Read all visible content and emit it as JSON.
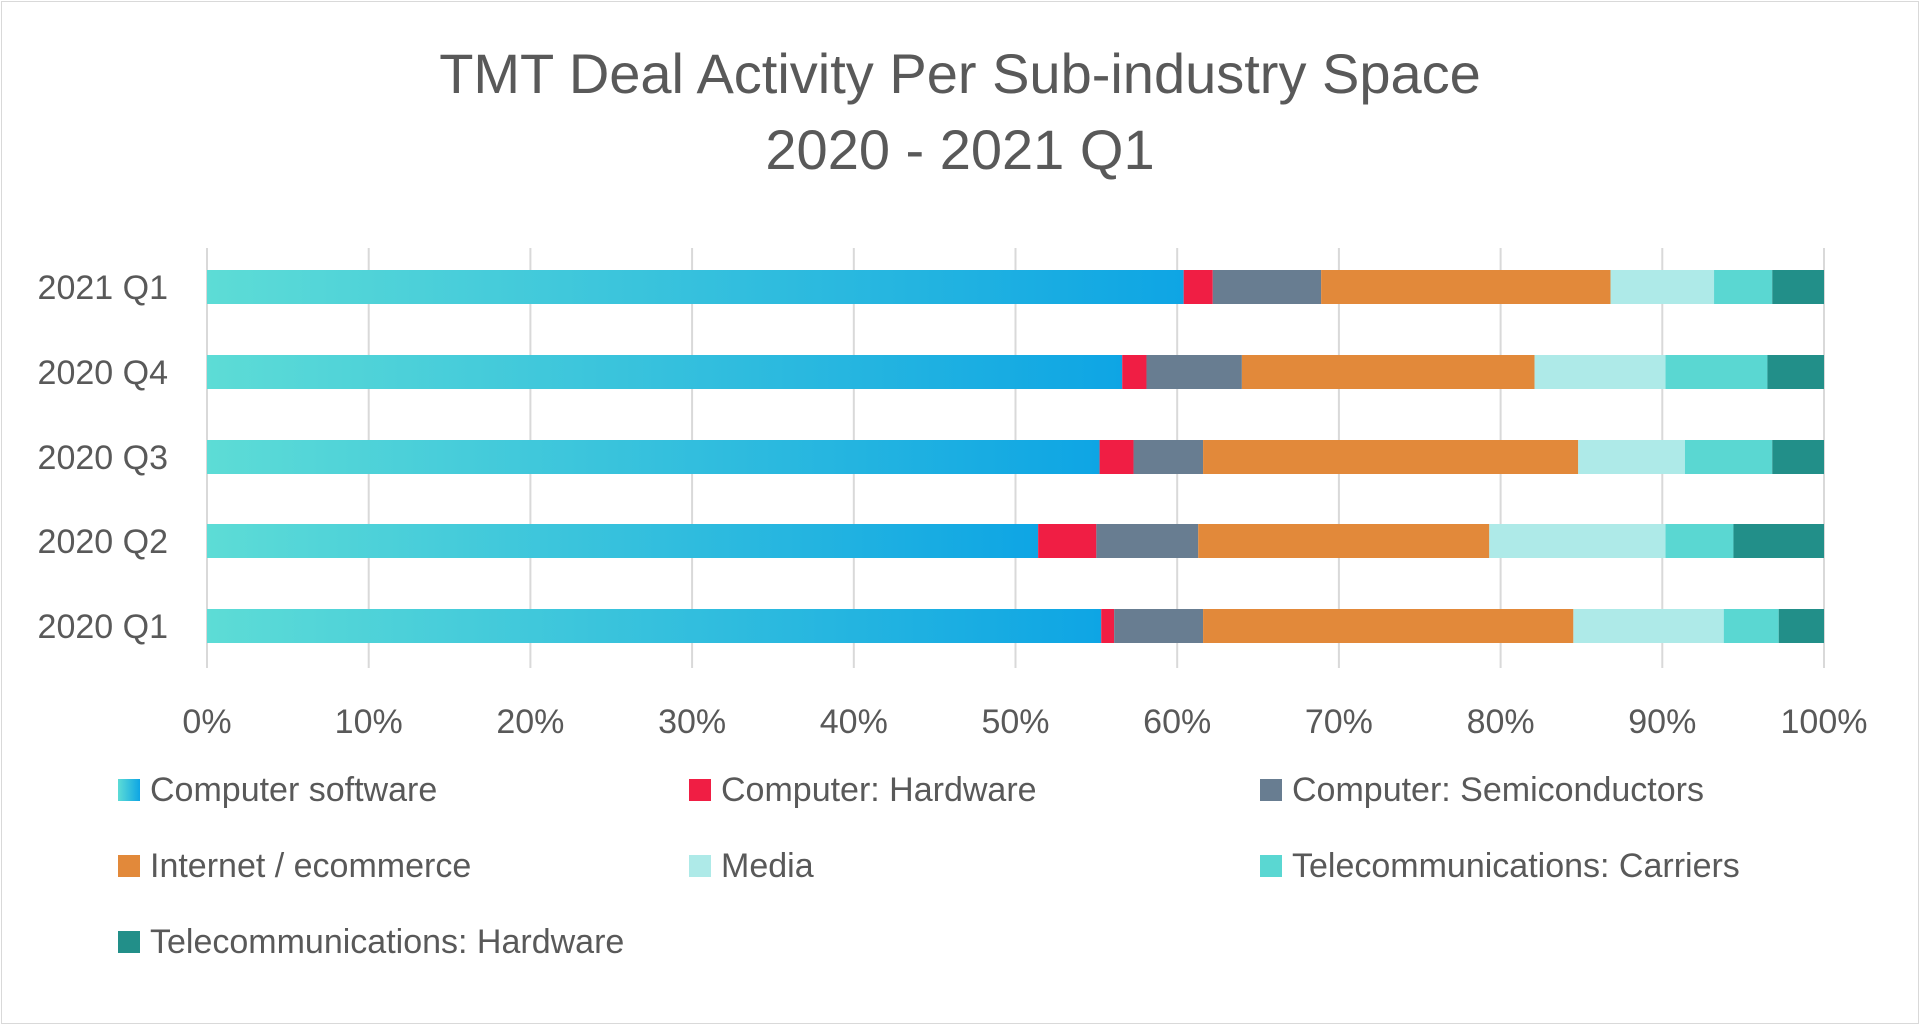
{
  "chart_data": {
    "type": "bar",
    "orientation": "horizontal",
    "stacked": "percent",
    "title": "TMT Deal Activity Per Sub-industry Space",
    "subtitle": "2020 - 2021 Q1",
    "categories": [
      "2021 Q1",
      "2020 Q4",
      "2020 Q3",
      "2020 Q2",
      "2020 Q1"
    ],
    "xlim": [
      0,
      100
    ],
    "x_ticks": [
      "0%",
      "10%",
      "20%",
      "30%",
      "40%",
      "50%",
      "60%",
      "70%",
      "80%",
      "90%",
      "100%"
    ],
    "grid": "vertical",
    "legend_position": "bottom",
    "series": [
      {
        "name": "Computer software",
        "color": "#0ea5e4",
        "color_start": "#5ddcd6",
        "values": [
          60.4,
          56.6,
          55.2,
          51.4,
          55.3
        ]
      },
      {
        "name": "Computer: Hardware",
        "color": "#f01e44",
        "values": [
          1.8,
          1.5,
          2.1,
          3.6,
          0.8
        ]
      },
      {
        "name": "Computer: Semiconductors",
        "color": "#687d91",
        "values": [
          6.7,
          5.9,
          4.3,
          6.3,
          5.5
        ]
      },
      {
        "name": "Internet / ecommerce",
        "color": "#e2893a",
        "values": [
          17.9,
          18.1,
          23.2,
          18.0,
          22.9
        ]
      },
      {
        "name": "Media",
        "color": "#aeeae8",
        "values": [
          6.4,
          8.1,
          6.6,
          10.9,
          9.3
        ]
      },
      {
        "name": "Telecommunications: Carriers",
        "color": "#5ad7d2",
        "values": [
          3.6,
          6.3,
          5.4,
          4.2,
          3.4
        ]
      },
      {
        "name": "Telecommunications: Hardware",
        "color": "#228f89",
        "values": [
          3.2,
          3.5,
          3.2,
          5.6,
          2.8
        ]
      }
    ]
  }
}
